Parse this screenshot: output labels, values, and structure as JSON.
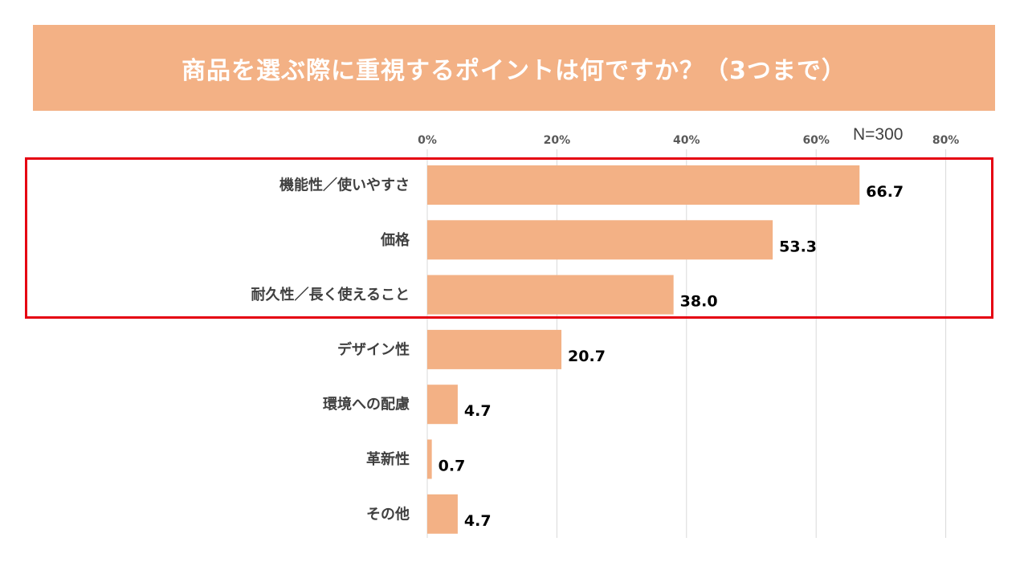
{
  "chart_data": {
    "type": "bar",
    "orientation": "horizontal",
    "title": "商品を選ぶ際に重視するポイントは何ですか？（3つまで）",
    "sample_size": "N=300",
    "categories": [
      "機能性／使いやすさ",
      "価格",
      "耐久性／長く使えること",
      "デザイン性",
      "環境への配慮",
      "革新性",
      "その他"
    ],
    "values": [
      66.7,
      53.3,
      38.0,
      20.7,
      4.7,
      0.7,
      4.7
    ],
    "value_labels": [
      "66.7",
      "53.3",
      "38.0",
      "20.7",
      "4.7",
      "0.7",
      "4.7"
    ],
    "x_ticks": [
      "0%",
      "20%",
      "40%",
      "60%",
      "80%"
    ],
    "x_tick_values": [
      0,
      20,
      40,
      60,
      80
    ],
    "xlim": [
      0,
      80
    ],
    "axis_position": "top",
    "grid": true,
    "highlighted_categories": [
      "機能性／使いやすさ",
      "価格",
      "耐久性／長く使えること"
    ],
    "colors": {
      "bar": "#F3B185",
      "banner": "#F3B185",
      "highlight": "#E50012",
      "grid": "#D9D9D9"
    }
  }
}
